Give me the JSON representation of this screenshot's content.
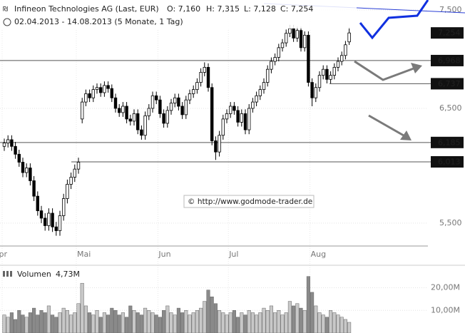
{
  "chart_data": {
    "type": "candlestick",
    "title": "Infineon Technologies AG (Last, EUR)",
    "quote": {
      "open": "O: 7,160",
      "high": "H: 7,315",
      "low": "L: 7,128",
      "close": "C: 7,254"
    },
    "subtitle": "02.04.2013 - 14.08.2013 (5 Monate, 1 Tag)",
    "watermark": "© http://www.godmode-trader.de",
    "log": true,
    "ylim": [
      5320,
      7610
    ],
    "yticks": [
      {
        "value": 5500,
        "label": "5,500"
      },
      {
        "value": 6500,
        "label": "6,500"
      },
      {
        "value": 7500,
        "label": "7,500"
      }
    ],
    "xticks": [
      {
        "value": 0,
        "label": "Apr"
      },
      {
        "value": 20,
        "label": "Mai"
      },
      {
        "value": 42,
        "label": "Jun"
      },
      {
        "value": 61,
        "label": "Jul"
      },
      {
        "value": 83,
        "label": "Aug"
      }
    ],
    "open": [
      6150,
      6180,
      6210,
      6150,
      6080,
      6010,
      5920,
      5960,
      5850,
      5720,
      5600,
      5540,
      5480,
      5580,
      5470,
      5440,
      5560,
      5700,
      5820,
      5880,
      5950,
      6400,
      6560,
      6640,
      6600,
      6680,
      6700,
      6650,
      6720,
      6690,
      6600,
      6500,
      6460,
      6520,
      6400,
      6380,
      6450,
      6300,
      6250,
      6430,
      6500,
      6620,
      6580,
      6450,
      6360,
      6480,
      6550,
      6600,
      6520,
      6440,
      6580,
      6640,
      6680,
      6750,
      6850,
      6900,
      6700,
      6200,
      6100,
      6250,
      6400,
      6450,
      6520,
      6480,
      6370,
      6450,
      6300,
      6500,
      6560,
      6620,
      6680,
      6750,
      6880,
      6960,
      7000,
      7100,
      7150,
      7250,
      7300,
      7200,
      7280,
      7100,
      7230,
      6750,
      6600,
      6700,
      6820,
      6880,
      6780,
      6820,
      6900,
      6960,
      7020,
      7160
    ],
    "high": [
      6220,
      6250,
      6250,
      6190,
      6120,
      6050,
      6000,
      6000,
      5890,
      5760,
      5640,
      5580,
      5620,
      5620,
      5510,
      5600,
      5740,
      5860,
      5920,
      5990,
      6050,
      6600,
      6680,
      6680,
      6720,
      6740,
      6740,
      6760,
      6760,
      6730,
      6640,
      6540,
      6560,
      6560,
      6440,
      6490,
      6490,
      6340,
      6470,
      6540,
      6660,
      6660,
      6620,
      6490,
      6520,
      6590,
      6640,
      6640,
      6560,
      6620,
      6680,
      6720,
      6790,
      6890,
      6950,
      6940,
      6740,
      6240,
      6290,
      6440,
      6490,
      6560,
      6560,
      6520,
      6490,
      6490,
      6540,
      6600,
      6660,
      6720,
      6790,
      6920,
      7000,
      7040,
      7140,
      7190,
      7290,
      7340,
      7340,
      7320,
      7320,
      7270,
      7270,
      6790,
      6740,
      6860,
      6920,
      6920,
      6860,
      6940,
      7000,
      7060,
      7170,
      7315
    ],
    "low": [
      6110,
      6140,
      6110,
      6040,
      5970,
      5880,
      5880,
      5810,
      5680,
      5560,
      5500,
      5440,
      5440,
      5430,
      5400,
      5400,
      5520,
      5660,
      5780,
      5840,
      5910,
      6360,
      6520,
      6560,
      6560,
      6640,
      6610,
      6610,
      6650,
      6560,
      6460,
      6420,
      6420,
      6360,
      6340,
      6340,
      6260,
      6210,
      6210,
      6390,
      6460,
      6540,
      6410,
      6320,
      6320,
      6440,
      6510,
      6480,
      6400,
      6400,
      6540,
      6600,
      6640,
      6710,
      6810,
      6660,
      6160,
      6030,
      6060,
      6210,
      6360,
      6410,
      6440,
      6330,
      6330,
      6260,
      6260,
      6460,
      6520,
      6580,
      6640,
      6710,
      6840,
      6920,
      6960,
      7060,
      7110,
      7210,
      7160,
      7160,
      7060,
      7060,
      6710,
      6520,
      6560,
      6660,
      6780,
      6740,
      6740,
      6780,
      6860,
      6920,
      6980,
      7128
    ],
    "close": [
      6180,
      6210,
      6150,
      6080,
      6010,
      5920,
      5960,
      5850,
      5720,
      5600,
      5540,
      5480,
      5580,
      5470,
      5440,
      5560,
      5700,
      5820,
      5880,
      5950,
      6010,
      6560,
      6640,
      6600,
      6680,
      6700,
      6650,
      6720,
      6690,
      6600,
      6500,
      6460,
      6520,
      6400,
      6380,
      6450,
      6300,
      6250,
      6430,
      6500,
      6620,
      6580,
      6450,
      6360,
      6480,
      6550,
      6600,
      6520,
      6440,
      6580,
      6640,
      6680,
      6750,
      6850,
      6900,
      6700,
      6200,
      6100,
      6250,
      6400,
      6450,
      6520,
      6480,
      6370,
      6450,
      6300,
      6500,
      6560,
      6620,
      6680,
      6750,
      6880,
      6960,
      7000,
      7100,
      7150,
      7250,
      7300,
      7200,
      7280,
      7100,
      7230,
      6750,
      6600,
      6700,
      6820,
      6880,
      6780,
      6820,
      6900,
      6960,
      7020,
      7130,
      7254
    ],
    "price_label": {
      "value": 7254,
      "label": "7,254"
    },
    "levels": [
      {
        "value": 6968,
        "label": "6,968"
      },
      {
        "value": 6737,
        "label": "6,737"
      },
      {
        "value": 6185,
        "label": "6,185"
      },
      {
        "value": 6013,
        "label": "6,013"
      }
    ],
    "volume": {
      "type": "bar",
      "title": "Volumen",
      "current": "4,73M",
      "ylim": [
        0,
        29
      ],
      "yticks": [
        {
          "value": 10,
          "label": "10,00M"
        },
        {
          "value": 20,
          "label": "20,00M"
        }
      ],
      "values": [
        8,
        7,
        9,
        6,
        10,
        8,
        7,
        9,
        11,
        8,
        10,
        9,
        12,
        8,
        7,
        9,
        11,
        10,
        8,
        9,
        13,
        22,
        12,
        9,
        8,
        10,
        7,
        9,
        8,
        11,
        10,
        8,
        9,
        7,
        12,
        10,
        9,
        8,
        11,
        10,
        9,
        8,
        7,
        10,
        12,
        9,
        8,
        11,
        9,
        10,
        8,
        9,
        10,
        11,
        14,
        19,
        16,
        13,
        10,
        9,
        8,
        9,
        10,
        7,
        9,
        8,
        10,
        9,
        8,
        9,
        11,
        10,
        12,
        9,
        10,
        8,
        9,
        14,
        12,
        13,
        11,
        10,
        25,
        18,
        12,
        9,
        8,
        7,
        10,
        9,
        8,
        7,
        6,
        4.73
      ]
    }
  }
}
